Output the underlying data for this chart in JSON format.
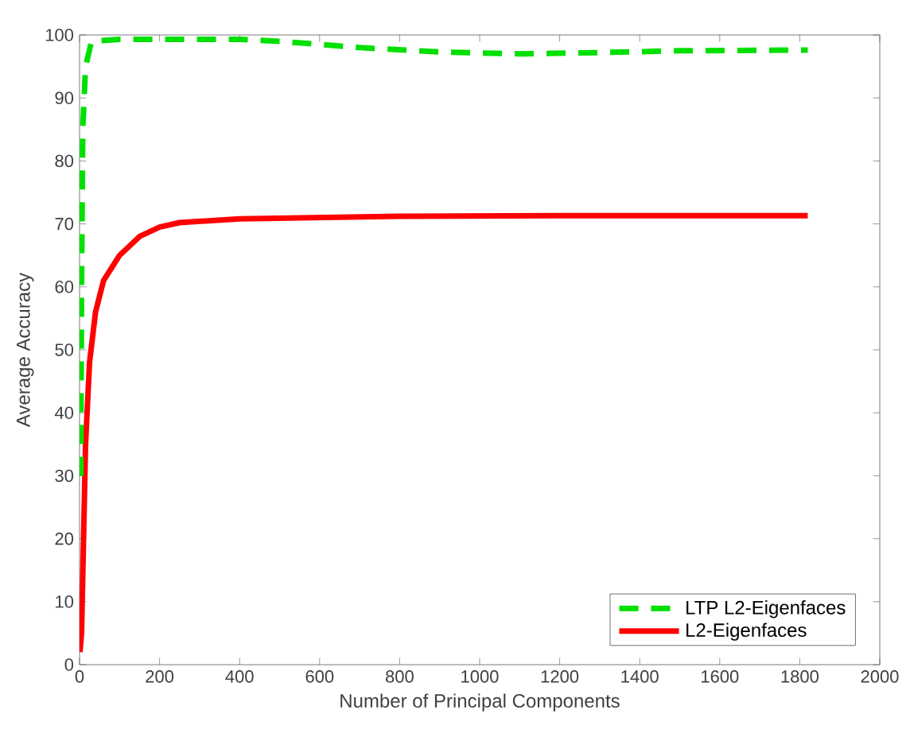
{
  "chart_data": {
    "type": "line",
    "xlabel": "Number of Principal Components",
    "ylabel": "Average Accuracy",
    "xlim": [
      0,
      2000
    ],
    "ylim": [
      0,
      100
    ],
    "xticks": [
      0,
      200,
      400,
      600,
      800,
      1000,
      1200,
      1400,
      1600,
      1800,
      2000
    ],
    "yticks": [
      0,
      10,
      20,
      30,
      40,
      50,
      60,
      70,
      80,
      90,
      100
    ],
    "grid": false,
    "legend": "bottom right",
    "marker": "none",
    "series": [
      {
        "name": "LTP L2-Eigenfaces",
        "color": "#00e000",
        "line_style": "dashed",
        "x": [
          3,
          5,
          8,
          15,
          30,
          100,
          400,
          500,
          700,
          900,
          1100,
          1300,
          1500,
          1820
        ],
        "values": [
          30,
          60,
          85,
          95,
          99,
          99.3,
          99.3,
          99,
          98,
          97.3,
          97,
          97.2,
          97.5,
          97.6
        ]
      },
      {
        "name": "L2-Eigenfaces",
        "color": "#ff0000",
        "line_style": "solid",
        "x": [
          1,
          5,
          10,
          15,
          25,
          40,
          60,
          100,
          150,
          200,
          250,
          400,
          800,
          1200,
          1820
        ],
        "values": [
          2,
          5,
          20,
          35,
          48,
          56,
          61,
          65,
          68,
          69.5,
          70.2,
          70.8,
          71.2,
          71.3,
          71.3
        ]
      }
    ]
  }
}
